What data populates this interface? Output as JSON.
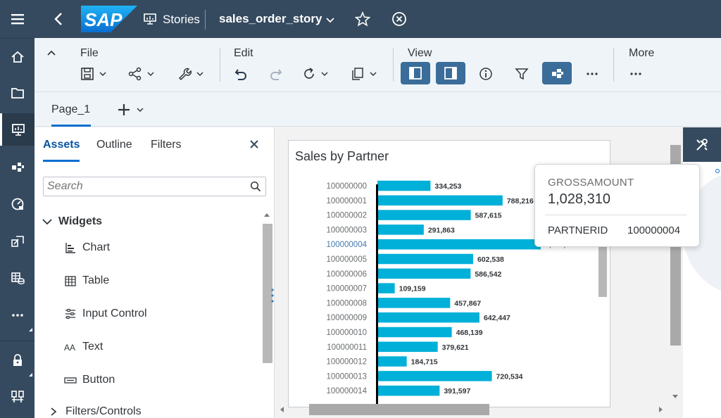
{
  "shell": {
    "logo_text": "SAP",
    "section": "Stories",
    "story_title": "sales_order_story"
  },
  "toolbar": {
    "file_label": "File",
    "edit_label": "Edit",
    "view_label": "View",
    "more_label": "More"
  },
  "pages": {
    "tab_label": "Page_1"
  },
  "panel": {
    "tabs": [
      "Assets",
      "Outline",
      "Filters"
    ],
    "search_placeholder": "Search",
    "widgets_header": "Widgets",
    "widgets": [
      "Chart",
      "Table",
      "Input Control",
      "Text",
      "Button"
    ],
    "filters_header": "Filters/Controls"
  },
  "chart_data": {
    "type": "bar",
    "orientation": "horizontal",
    "title": "Sales by Partner",
    "categories": [
      "100000000",
      "100000001",
      "100000002",
      "100000003",
      "100000004",
      "100000005",
      "100000006",
      "100000007",
      "100000008",
      "100000009",
      "100000010",
      "100000011",
      "100000012",
      "100000013",
      "100000014"
    ],
    "values": [
      334253,
      788216,
      587615,
      291863,
      1028310,
      602538,
      586542,
      109159,
      457867,
      642447,
      468139,
      379621,
      184715,
      720534,
      391597
    ],
    "value_labels": [
      "334,253",
      "788,216",
      "587,615",
      "291,863",
      "1,028,310",
      "602,538",
      "586,542",
      "109,159",
      "457,867",
      "642,447",
      "468,139",
      "379,621",
      "184,715",
      "720,534",
      "391,597"
    ],
    "highlighted_index": 4,
    "bar_color": "#00b0d8",
    "highlight_label_color": "#427cac"
  },
  "tooltip": {
    "measure_name": "GROSSAMOUNT",
    "measure_value": "1,028,310",
    "dimension_name": "PARTNERID",
    "dimension_value": "100000004"
  },
  "colors": {
    "shell": "#354a5f",
    "accent": "#0a6ed1",
    "toolbar_bg": "#eff4f9"
  }
}
